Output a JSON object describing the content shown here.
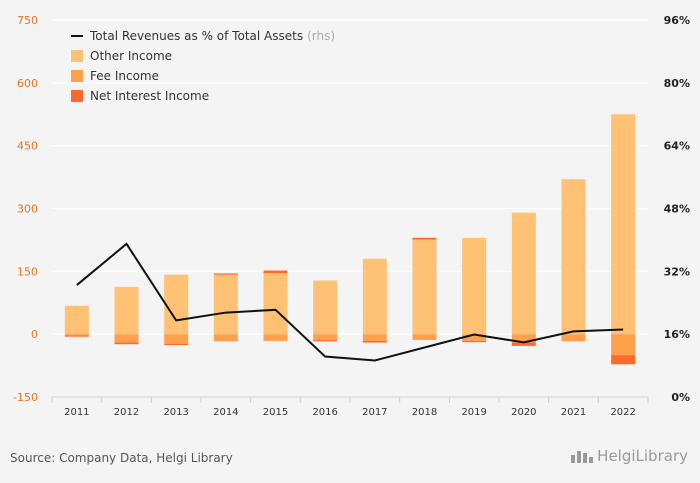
{
  "chart_data": {
    "type": "bar",
    "categories": [
      "2011",
      "2012",
      "2013",
      "2014",
      "2015",
      "2016",
      "2017",
      "2018",
      "2019",
      "2020",
      "2021",
      "2022"
    ],
    "series": [
      {
        "name": "Other Income",
        "kind": "bar",
        "color": "#ffc173",
        "values": [
          68,
          113,
          142,
          142,
          146,
          128,
          180,
          226,
          230,
          290,
          370,
          525
        ]
      },
      {
        "name": "Fee Income",
        "kind": "bar",
        "color": "#ffa04d",
        "values": [
          -3,
          -20,
          -23,
          -17,
          -16,
          -14,
          -16,
          -14,
          -16,
          -20,
          -17,
          -50
        ]
      },
      {
        "name": "Net Interest Income",
        "kind": "bar",
        "color": "#ff6a2c",
        "values": [
          -3,
          -4,
          -3,
          3,
          6,
          -3,
          -4,
          4,
          -3,
          -8,
          0,
          -22
        ]
      },
      {
        "name": "Total Revenues as % of Total Assets",
        "kind": "line",
        "axis": "right",
        "color": "#111111",
        "values": [
          28.5,
          39,
          19.5,
          21.5,
          22.2,
          10.3,
          9.3,
          12.6,
          15.9,
          13.9,
          16.7,
          17.2
        ]
      }
    ],
    "y_left": {
      "ticks": [
        750,
        600,
        450,
        300,
        150,
        0,
        -150
      ],
      "min": -150,
      "max": 750
    },
    "y_right": {
      "ticks": [
        "96%",
        "80%",
        "64%",
        "48%",
        "32%",
        "16%",
        "0%"
      ],
      "min": 0,
      "max": 96
    },
    "legend": [
      {
        "label": "Total Revenues as % of Total Assets",
        "note": "(rhs)",
        "symbol": "line",
        "color": "#111111"
      },
      {
        "label": "Other Income",
        "symbol": "box",
        "color": "#ffc173"
      },
      {
        "label": "Fee Income",
        "symbol": "box",
        "color": "#ffa04d"
      },
      {
        "label": "Net Interest Income",
        "symbol": "box",
        "color": "#ff6a2c"
      }
    ],
    "legend_position": "top-left",
    "grid": true
  },
  "footer": {
    "source": "Source: Company Data, Helgi Library",
    "brand": "HelgiLibrary"
  }
}
